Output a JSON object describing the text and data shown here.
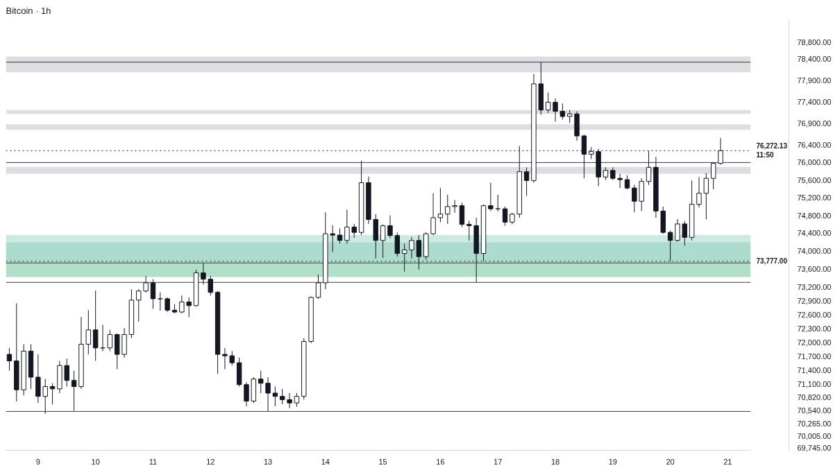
{
  "chart_data": {
    "type": "candlestick",
    "title": "Bitcoin · 1h",
    "log": true,
    "color": "#131722",
    "x": [
      8.5,
      8.625,
      8.75,
      8.875,
      9,
      9.125,
      9.25,
      9.375,
      9.5,
      9.625,
      9.75,
      9.875,
      10,
      10.125,
      10.25,
      10.375,
      10.5,
      10.625,
      10.75,
      10.875,
      11,
      11.125,
      11.25,
      11.375,
      11.5,
      11.625,
      11.75,
      11.875,
      12,
      12.125,
      12.25,
      12.375,
      12.5,
      12.625,
      12.75,
      12.875,
      13,
      13.125,
      13.25,
      13.375,
      13.5,
      13.625,
      13.75,
      13.875,
      14,
      14.125,
      14.25,
      14.375,
      14.5,
      14.625,
      14.75,
      14.875,
      15,
      15.125,
      15.25,
      15.375,
      15.5,
      15.625,
      15.75,
      15.875,
      16,
      16.125,
      16.25,
      16.375,
      16.5,
      16.625,
      16.75,
      16.875,
      17,
      17.125,
      17.25,
      17.375,
      17.5,
      17.625,
      17.75,
      17.875,
      18,
      18.125,
      18.25,
      18.375,
      18.5,
      18.625,
      18.75,
      18.875,
      19,
      19.125,
      19.25,
      19.375,
      19.5,
      19.625,
      19.75,
      19.875,
      20,
      20.125,
      20.25,
      20.375,
      20.5,
      20.625,
      20.75,
      20.875
    ],
    "ohlc": [
      [
        71740,
        71880,
        71390,
        71600
      ],
      [
        71600,
        72850,
        70730,
        70980
      ],
      [
        70980,
        71960,
        70860,
        71810
      ],
      [
        71810,
        71960,
        71000,
        71250
      ],
      [
        71250,
        71740,
        70700,
        70840
      ],
      [
        70840,
        71210,
        70470,
        71050
      ],
      [
        71050,
        71120,
        70670,
        71000
      ],
      [
        71000,
        71600,
        70910,
        71500
      ],
      [
        71500,
        71650,
        71050,
        71180
      ],
      [
        71180,
        71390,
        70530,
        71050
      ],
      [
        71050,
        72550,
        71000,
        71960
      ],
      [
        71960,
        72700,
        71740,
        72270
      ],
      [
        72270,
        73130,
        71600,
        71880
      ],
      [
        71880,
        72380,
        71810,
        71880
      ],
      [
        71880,
        72270,
        71810,
        72170
      ],
      [
        72170,
        72190,
        71420,
        71740
      ],
      [
        71740,
        72310,
        71670,
        72170
      ],
      [
        72170,
        73160,
        72090,
        72920
      ],
      [
        72920,
        73160,
        72450,
        73120
      ],
      [
        73120,
        73450,
        73090,
        73300
      ],
      [
        73300,
        73380,
        72730,
        72950
      ],
      [
        72950,
        73090,
        72690,
        72950
      ],
      [
        72950,
        72980,
        72660,
        72700
      ],
      [
        72700,
        72830,
        72630,
        72660
      ],
      [
        72660,
        73020,
        72630,
        72880
      ],
      [
        72880,
        72980,
        72550,
        72800
      ],
      [
        72800,
        73590,
        72780,
        73520
      ],
      [
        73520,
        73740,
        73260,
        73380
      ],
      [
        73380,
        73450,
        73020,
        73090
      ],
      [
        73090,
        73120,
        71320,
        71740
      ],
      [
        71740,
        71880,
        71420,
        71710
      ],
      [
        71710,
        71810,
        71500,
        71560
      ],
      [
        71560,
        71670,
        71050,
        71090
      ],
      [
        71090,
        71140,
        70630,
        70740
      ],
      [
        70740,
        71250,
        70700,
        71210
      ],
      [
        71210,
        71390,
        70910,
        71120
      ],
      [
        71120,
        71250,
        70520,
        70910
      ],
      [
        70910,
        71050,
        70630,
        70840
      ],
      [
        70840,
        71000,
        70670,
        70770
      ],
      [
        70770,
        70910,
        70590,
        70700
      ],
      [
        70700,
        70910,
        70620,
        70840
      ],
      [
        70840,
        72090,
        70770,
        72020
      ],
      [
        72020,
        73000,
        71980,
        72980
      ],
      [
        72980,
        73480,
        72950,
        73300
      ],
      [
        73300,
        74870,
        73160,
        74390
      ],
      [
        74390,
        74580,
        73980,
        74360
      ],
      [
        74360,
        74510,
        74170,
        74240
      ],
      [
        74240,
        74930,
        74170,
        74540
      ],
      [
        74540,
        74610,
        74300,
        74420
      ],
      [
        74420,
        76040,
        74360,
        75540
      ],
      [
        75540,
        75680,
        74610,
        74710
      ],
      [
        74710,
        74830,
        73840,
        74240
      ],
      [
        74240,
        74600,
        73850,
        74570
      ],
      [
        74570,
        74800,
        74290,
        74350
      ],
      [
        74350,
        74420,
        73880,
        73950
      ],
      [
        73950,
        74170,
        73550,
        74030
      ],
      [
        74030,
        74320,
        73840,
        74240
      ],
      [
        74240,
        74360,
        73590,
        73880
      ],
      [
        73880,
        74420,
        73810,
        74390
      ],
      [
        74390,
        75300,
        74360,
        74750
      ],
      [
        74750,
        75420,
        74650,
        74830
      ],
      [
        74830,
        75270,
        74610,
        75000
      ],
      [
        75000,
        75150,
        74860,
        75020
      ],
      [
        75020,
        75090,
        74540,
        74600
      ],
      [
        74600,
        74680,
        74240,
        74570
      ],
      [
        74570,
        74750,
        73310,
        73950
      ],
      [
        73950,
        75050,
        73780,
        75020
      ],
      [
        75020,
        75540,
        74900,
        74950
      ],
      [
        74950,
        75270,
        74890,
        74950
      ],
      [
        74950,
        75000,
        74570,
        74650
      ],
      [
        74650,
        74860,
        74600,
        74830
      ],
      [
        74830,
        76380,
        74750,
        75790
      ],
      [
        75790,
        75890,
        75240,
        75590
      ],
      [
        75590,
        78050,
        75540,
        77820
      ],
      [
        77820,
        78330,
        77100,
        77210
      ],
      [
        77210,
        77620,
        77140,
        77390
      ],
      [
        77390,
        77480,
        76940,
        77180
      ],
      [
        77180,
        77360,
        76990,
        77060
      ],
      [
        77060,
        77210,
        76910,
        77120
      ],
      [
        77120,
        77180,
        76500,
        76610
      ],
      [
        76610,
        76640,
        75640,
        76190
      ],
      [
        76190,
        76350,
        76080,
        76250
      ],
      [
        76250,
        76310,
        75460,
        75670
      ],
      [
        75670,
        75890,
        75600,
        75820
      ],
      [
        75820,
        75890,
        75600,
        75640
      ],
      [
        75640,
        75740,
        75420,
        75610
      ],
      [
        75610,
        75710,
        75390,
        75420
      ],
      [
        75420,
        75490,
        74870,
        75120
      ],
      [
        75120,
        75640,
        74900,
        75570
      ],
      [
        75570,
        76260,
        75490,
        75890
      ],
      [
        75890,
        76130,
        74750,
        74900
      ],
      [
        74900,
        75000,
        74390,
        74420
      ],
      [
        74420,
        74460,
        73777,
        74240
      ],
      [
        74240,
        74720,
        74210,
        74610
      ],
      [
        74610,
        74680,
        74120,
        74310
      ],
      [
        74310,
        75590,
        74240,
        75050
      ],
      [
        75050,
        75670,
        74980,
        75300
      ],
      [
        75300,
        75760,
        74710,
        75640
      ],
      [
        75640,
        75980,
        75390,
        75980
      ],
      [
        75980,
        76560,
        75950,
        76272
      ]
    ],
    "xlim": [
      8.44,
      21.4
    ],
    "xticks": [
      9,
      10,
      11,
      12,
      13,
      14,
      15,
      16,
      17,
      18,
      19,
      20,
      21
    ],
    "ylim": [
      69700,
      79350
    ],
    "yticks": [
      {
        "value": 78800,
        "label": "78,800.00"
      },
      {
        "value": 78400,
        "label": "78,400.00"
      },
      {
        "value": 77900,
        "label": "77,900.00"
      },
      {
        "value": 77400,
        "label": "77,400.00"
      },
      {
        "value": 76900,
        "label": "76,900.00"
      },
      {
        "value": 76400,
        "label": "76,400.00"
      },
      {
        "value": 76000,
        "label": "76,000.00"
      },
      {
        "value": 75600,
        "label": "75,600.00"
      },
      {
        "value": 75200,
        "label": "75,200.00"
      },
      {
        "value": 74800,
        "label": "74,800.00"
      },
      {
        "value": 74400,
        "label": "74,400.00"
      },
      {
        "value": 74000,
        "label": "74,000.00"
      },
      {
        "value": 73600,
        "label": "73,600.00"
      },
      {
        "value": 73200,
        "label": "73,200.00"
      },
      {
        "value": 72900,
        "label": "72,900.00"
      },
      {
        "value": 72600,
        "label": "72,600.00"
      },
      {
        "value": 72300,
        "label": "72,300.00"
      },
      {
        "value": 72000,
        "label": "72,000.00"
      },
      {
        "value": 71700,
        "label": "71,700.00"
      },
      {
        "value": 71400,
        "label": "71,400.00"
      },
      {
        "value": 71100,
        "label": "71,100.00"
      },
      {
        "value": 70820,
        "label": "70,820.00"
      },
      {
        "value": 70540,
        "label": "70,540.00"
      },
      {
        "value": 70265,
        "label": "70,265.00"
      },
      {
        "value": 70005,
        "label": "70,005.00"
      },
      {
        "value": 69745,
        "label": "69,745.00"
      }
    ],
    "ref_lines": [
      {
        "axis": "y",
        "value": 78330,
        "color": "#363a45"
      },
      {
        "axis": "y",
        "value": 76272.13,
        "label": "76,272.13\n11:50",
        "color": "#131722",
        "line_style": "dotted"
      },
      {
        "axis": "y",
        "value": 76000,
        "color": "#363a45"
      },
      {
        "axis": "y",
        "value": 73777,
        "label": "73,777.00",
        "color": "#131722",
        "line_style": "dotted"
      },
      {
        "axis": "y",
        "value": 73740,
        "color": "#363a45"
      },
      {
        "axis": "y",
        "value": 73310,
        "color": "#363a45"
      },
      {
        "axis": "y",
        "value": 70520,
        "color": "#363a45"
      }
    ],
    "bands": [
      {
        "axis": "y",
        "from": 78090,
        "to": 78460,
        "color": "#c6c8cf"
      },
      {
        "axis": "y",
        "from": 77120,
        "to": 77210,
        "color": "#c6c8cf"
      },
      {
        "axis": "y",
        "from": 76750,
        "to": 76880,
        "color": "#c6c8cf"
      },
      {
        "axis": "y",
        "from": 75740,
        "to": 75900,
        "color": "#c6c8cf"
      },
      {
        "axis": "y",
        "from": 73430,
        "to": 74200,
        "color": "#7fcaa3"
      },
      {
        "axis": "y",
        "from": 73790,
        "to": 74360,
        "color": "#aadad2"
      }
    ]
  }
}
